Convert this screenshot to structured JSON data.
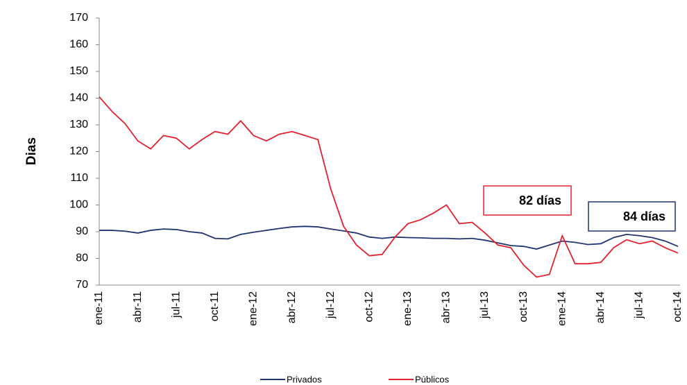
{
  "chart_data": {
    "type": "line",
    "y_label": "Dias",
    "categories": [
      "ene-11",
      null,
      null,
      "abr-11",
      null,
      null,
      "jul-11",
      null,
      null,
      "oct-11",
      null,
      null,
      "ene-12",
      null,
      null,
      "abr-12",
      null,
      null,
      "jul-12",
      null,
      null,
      "oct-12",
      null,
      null,
      "ene-13",
      null,
      null,
      "abr-13",
      null,
      null,
      "jul-13",
      null,
      null,
      "oct-13",
      null,
      null,
      "ene-14",
      null,
      null,
      "abr-14",
      null,
      null,
      "jul-14",
      null,
      null,
      "oct-14"
    ],
    "series": [
      {
        "name": "Privados",
        "color": "#1f3370",
        "values": [
          90.5,
          90.5,
          90.2,
          89.5,
          90.5,
          91,
          90.8,
          90,
          89.5,
          87.5,
          87.3,
          89,
          89.8,
          90.5,
          91.2,
          91.8,
          92,
          91.8,
          91,
          90.3,
          89.5,
          88,
          87.5,
          88,
          87.8,
          87.7,
          87.5,
          87.5,
          87.3,
          87.5,
          86.8,
          85.8,
          84.8,
          84.5,
          83.5,
          85,
          86.5,
          86,
          85.2,
          85.5,
          87.8,
          89,
          88.5,
          87.8,
          86.5,
          84.5
        ]
      },
      {
        "name": "Públicos",
        "color": "#e3202e",
        "values": [
          140.5,
          135,
          130.5,
          124,
          121,
          126,
          125,
          121,
          124.5,
          127.5,
          126.5,
          131.5,
          126,
          124,
          126.5,
          127.5,
          126,
          124.5,
          106,
          92,
          85,
          81,
          81.5,
          88,
          93,
          94.5,
          97,
          100,
          93,
          93.5,
          89.5,
          85,
          84,
          77.5,
          73,
          74,
          88.5,
          78,
          78,
          78.5,
          84,
          87,
          85.5,
          86.5,
          84,
          82
        ]
      }
    ],
    "annotations": [
      {
        "text": "82 días",
        "color": "#e3202e"
      },
      {
        "text": "84 días",
        "color": "#1f3370"
      }
    ],
    "ylim": [
      70,
      170
    ],
    "yticks": [
      70,
      80,
      90,
      100,
      110,
      120,
      130,
      140,
      150,
      160,
      170
    ],
    "grid": false
  }
}
